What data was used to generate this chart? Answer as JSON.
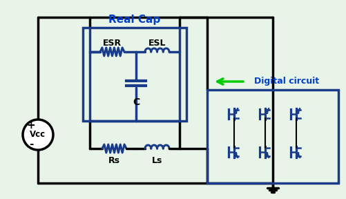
{
  "bg_color": "#e8f4e8",
  "dark_blue": "#1a2a6e",
  "mid_blue": "#1a3a8a",
  "bright_blue": "#0040cc",
  "green_arrow": "#00cc00",
  "black": "#000000",
  "white": "#ffffff",
  "title_real_cap": "Real Cap",
  "label_esr": "ESR",
  "label_esl": "ESL",
  "label_c": "C",
  "label_rs": "Rs",
  "label_ls": "Ls",
  "label_vcc": "Vcc",
  "label_digital": "Digital circuit",
  "label_plus": "+",
  "label_minus": "-"
}
